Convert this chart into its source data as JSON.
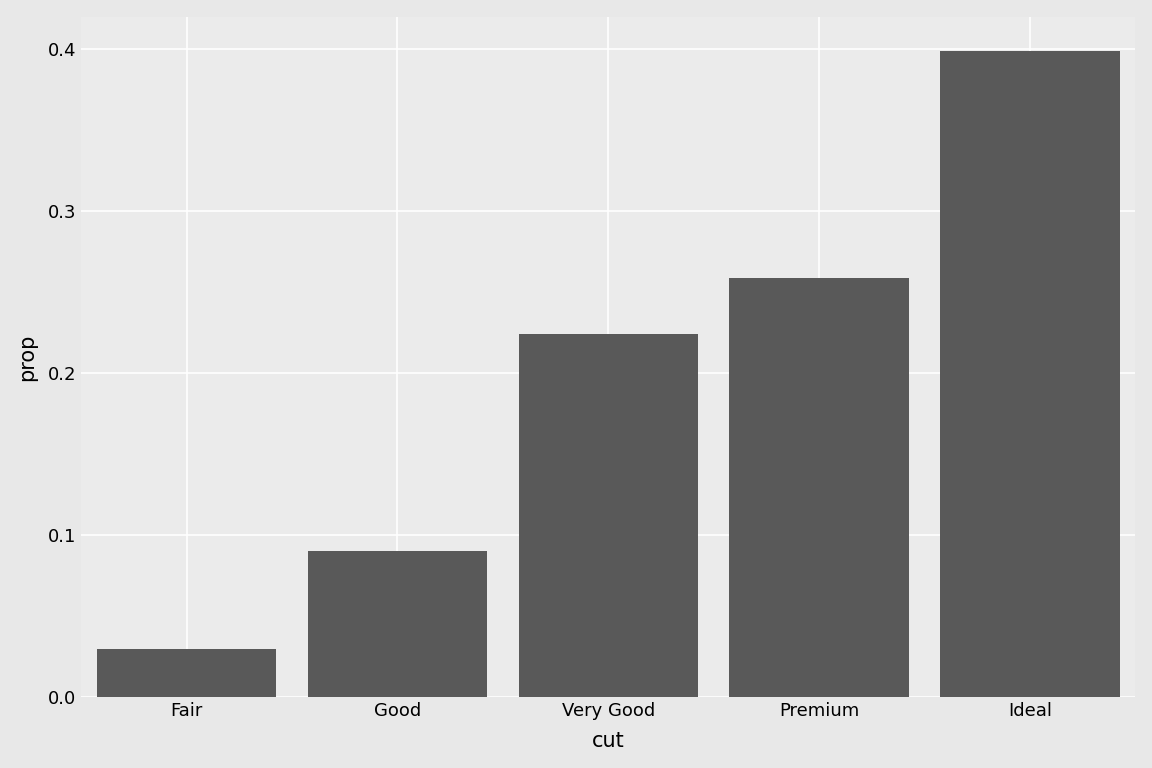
{
  "categories": [
    "Fair",
    "Good",
    "Very Good",
    "Premium",
    "Ideal"
  ],
  "values": [
    0.03,
    0.0905,
    0.224,
    0.259,
    0.399
  ],
  "bar_color": "#595959",
  "xlabel": "cut",
  "ylabel": "prop",
  "ylim": [
    0,
    0.42
  ],
  "yticks": [
    0.0,
    0.1,
    0.2,
    0.3,
    0.4
  ],
  "outer_background": "#E8E8E8",
  "panel_background": "#EBEBEB",
  "grid_color": "#FFFFFF",
  "xlabel_fontsize": 15,
  "ylabel_fontsize": 15,
  "tick_fontsize": 13,
  "bar_width": 0.85,
  "font_family": "DejaVu Sans"
}
